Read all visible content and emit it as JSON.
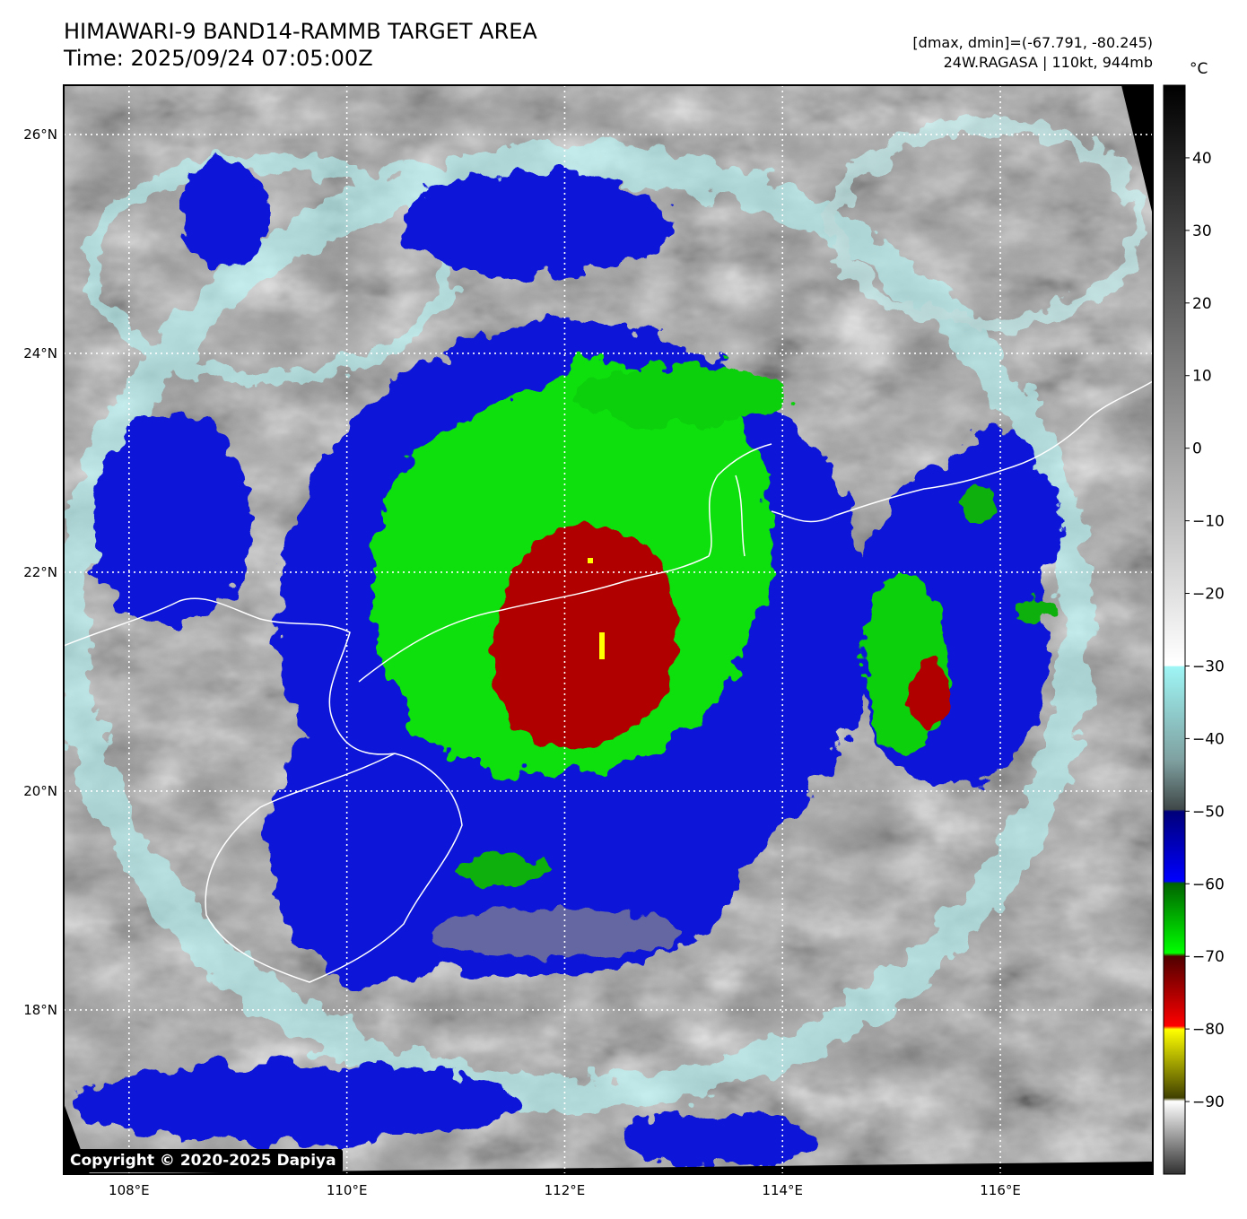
{
  "header": {
    "title_line1": "HIMAWARI-9 BAND14-RAMMB TARGET AREA",
    "title_line2": "Time: 2025/09/24 07:05:00Z",
    "dmax_dmin": "[dmax, dmin]=(-67.791, -80.245)",
    "storm_info": "24W.RAGASA | 110kt, 944mb"
  },
  "map": {
    "lat_labels": [
      "26°N",
      "24°N",
      "22°N",
      "20°N",
      "18°N"
    ],
    "lon_labels": [
      "108°E",
      "110°E",
      "112°E",
      "114°E",
      "116°E"
    ],
    "lat_range": [
      16.5,
      26.45
    ],
    "lon_range": [
      107.4,
      117.4
    ],
    "lat_ticks": [
      26,
      24,
      22,
      20,
      18
    ],
    "lon_ticks": [
      108,
      110,
      112,
      114,
      116
    ],
    "grid": true
  },
  "colorbar": {
    "unit": "°C",
    "tick_labels": [
      "40",
      "30",
      "20",
      "10",
      "0",
      "−10",
      "−20",
      "−30",
      "−40",
      "−50",
      "−60",
      "−70",
      "−80",
      "−90"
    ],
    "tick_values": [
      40,
      30,
      20,
      10,
      0,
      -10,
      -20,
      -30,
      -40,
      -50,
      -60,
      -70,
      -80,
      -90
    ],
    "range": [
      -100,
      50
    ]
  },
  "footer": {
    "copyright": "Copyright © 2020-2025 Dapiya"
  }
}
